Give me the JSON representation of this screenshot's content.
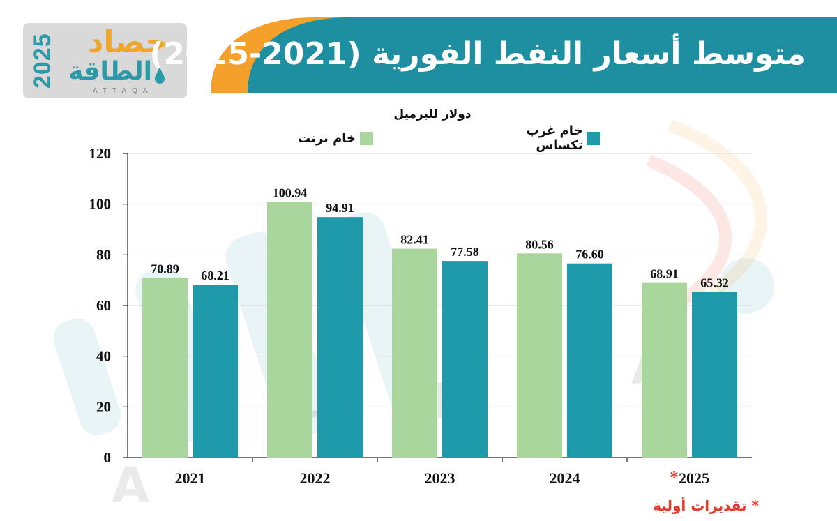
{
  "header": {
    "title": "متوسط أسعار النفط الفورية (2021-2025)",
    "logo_year": "2025",
    "logo_word1": "حصاد",
    "logo_word2": "الطاقة",
    "logo_latin": "ATTAQA"
  },
  "colors": {
    "brent": "#a9d69c",
    "wti": "#1f9aaa",
    "header_teal": "#1d8fa0",
    "header_orange": "#f6a02c",
    "note_red": "#e03c2c"
  },
  "note": "* تقديرات أولية",
  "chart_data": {
    "type": "bar",
    "title": "",
    "ylabel": "دولار للبرميل",
    "xlabel": "",
    "ylim": [
      0,
      120
    ],
    "yticks": [
      0,
      20,
      40,
      60,
      80,
      100,
      120
    ],
    "categories": [
      "2021",
      "2022",
      "2023",
      "2024",
      "2025"
    ],
    "starred_category": "2025",
    "star": "*",
    "legend_position": "top-center",
    "grid": true,
    "series": [
      {
        "name": "خام برنت",
        "color": "#a9d69c",
        "values": [
          70.89,
          100.94,
          82.41,
          80.56,
          68.91
        ],
        "labels": [
          "70.89",
          "100.94",
          "82.41",
          "80.56",
          "68.91"
        ]
      },
      {
        "name": "خام غرب تكساس",
        "color": "#1f9aaa",
        "values": [
          68.21,
          94.91,
          77.58,
          76.6,
          65.32
        ],
        "labels": [
          "68.21",
          "94.91",
          "77.58",
          "76.60",
          "65.32"
        ]
      }
    ]
  }
}
